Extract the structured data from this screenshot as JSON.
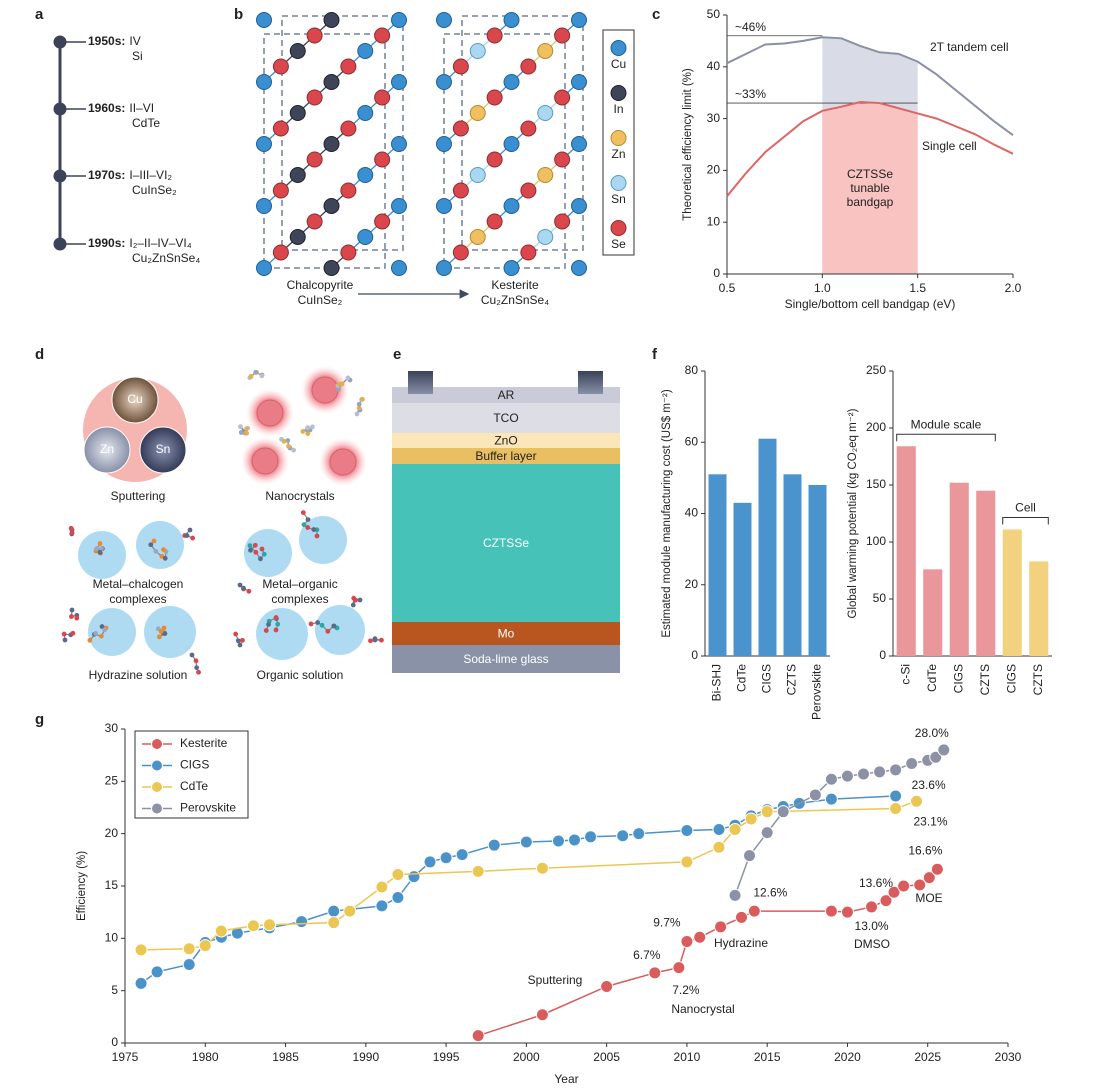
{
  "panel_labels": [
    "a",
    "b",
    "c",
    "d",
    "e",
    "f",
    "g"
  ],
  "timeline": [
    {
      "era": "1950s:",
      "class": "IV",
      "material": "Si"
    },
    {
      "era": "1960s:",
      "class": "II–VI",
      "material": "CdTe"
    },
    {
      "era": "1970s:",
      "class": "I–III–VI₂",
      "material": "CuInSe₂"
    },
    {
      "era": "1990s:",
      "class": "I₂–II–IV–VI₄",
      "material": "Cu₂ZnSnSe₄"
    }
  ],
  "crystal": {
    "structures": [
      {
        "name": "Chalcopyrite",
        "formula": "CuInSe₂"
      },
      {
        "name": "Kesterite",
        "formula": "Cu₂ZnSnSe₄"
      }
    ],
    "legend": [
      "Cu",
      "In",
      "Zn",
      "Sn",
      "Se"
    ]
  },
  "deposition": {
    "sputtering_targets": [
      "Cu",
      "Zn",
      "Sn"
    ],
    "methods": [
      [
        "Sputtering"
      ],
      [
        "Nanocrystals"
      ],
      [
        "Metal–chalcogen",
        "complexes"
      ],
      [
        "Metal–organic",
        "complexes"
      ],
      [
        "Hydrazine solution"
      ],
      [
        "Organic solution"
      ]
    ]
  },
  "device_stack": {
    "layers": [
      "AR",
      "TCO",
      "ZnO",
      "Buffer layer",
      "CZTSSe",
      "Mo",
      "Soda-lime glass"
    ]
  },
  "chart_data": [
    {
      "type": "line",
      "xlabel": "Single/bottom cell bandgap (eV)",
      "ylabel": "Theoretical efficiency limit (%)",
      "xlim": [
        0.5,
        2.0
      ],
      "ylim": [
        0,
        50
      ],
      "xticks": [
        0.5,
        {
          "value": 1,
          "label": "1.0"
        },
        1.5,
        {
          "value": 2,
          "label": "2.0"
        }
      ],
      "yticks": [
        0,
        10,
        20,
        30,
        40,
        50
      ],
      "x": [
        0.5,
        0.6,
        0.7,
        0.8,
        0.9,
        1.0,
        1.1,
        1.2,
        1.3,
        1.4,
        1.5,
        1.6,
        1.7,
        1.8,
        1.9,
        2.0
      ],
      "series": [
        {
          "name": "2T tandem cell",
          "color": "#8a90a5",
          "values": [
            40.7,
            42.5,
            44.3,
            44.5,
            45.0,
            45.7,
            45.5,
            44.0,
            42.8,
            42.5,
            41.0,
            38.5,
            35.5,
            32.5,
            29.5,
            26.8
          ]
        },
        {
          "name": "Single cell",
          "color": "#e06464",
          "values": [
            15,
            19.5,
            23.5,
            26.5,
            29.5,
            31.5,
            32.3,
            33.2,
            33.0,
            32.0,
            31.0,
            30.0,
            28.5,
            27.0,
            25.0,
            23.2
          ]
        }
      ],
      "highlight": [
        1.0,
        1.5
      ],
      "highlight_colors": [
        "#d9dce6",
        "#f8c3c0"
      ],
      "annotation": [
        "CZTSSe",
        "tunable",
        "bandgap"
      ],
      "reference_lines": [
        {
          "value": 46,
          "label": "~46%"
        },
        {
          "value": 33,
          "label": "~33%"
        }
      ]
    },
    {
      "type": "bar",
      "ylabel": "Estimated module manufacturing cost (US$ m⁻²)",
      "categories": [
        "Bi-SHJ",
        "CdTe",
        "CIGS",
        "CZTS",
        "Perovskite"
      ],
      "values": [
        51,
        43,
        61,
        51,
        48
      ],
      "color": "#4b93cc",
      "ylim": [
        0,
        80
      ],
      "yticks": [
        0,
        20,
        40,
        60,
        80
      ]
    },
    {
      "type": "bar",
      "ylabel": "Global warming potential (kg CO₂eq m⁻²)",
      "categories": [
        "c-Si",
        "CdTe",
        "CIGS",
        "CZTS",
        "CIGS",
        "CZTS"
      ],
      "series": [
        {
          "name": "Module scale",
          "color": "#e9979a",
          "values": [
            184,
            76,
            152,
            145,
            null,
            null
          ]
        },
        {
          "name": "Cell",
          "color": "#f2d27e",
          "values": [
            null,
            null,
            null,
            null,
            111,
            83
          ]
        }
      ],
      "ylim": [
        0,
        250
      ],
      "yticks": [
        0,
        50,
        100,
        150,
        200,
        250
      ]
    },
    {
      "type": "line",
      "xlabel": "Year",
      "ylabel": "Efficiency (%)",
      "legend": "upper left",
      "markers": true,
      "xlim": [
        1975,
        2030
      ],
      "ylim": [
        0,
        30
      ],
      "xticks": [
        1975,
        1980,
        1985,
        1990,
        1995,
        2000,
        2005,
        2010,
        2015,
        2020,
        2025,
        2030
      ],
      "yticks": [
        0,
        5,
        10,
        15,
        20,
        25,
        30
      ],
      "series": [
        {
          "name": "Kesterite",
          "color": "#d95b5b",
          "x": [
            1997,
            2001,
            2005,
            2008,
            2009.5,
            2010,
            2010.8,
            2012.1,
            2013.4,
            2014.2,
            2019,
            2020,
            2021.5,
            2022.4,
            2022.9,
            2023.5,
            2024.5,
            2025.1,
            2025.6
          ],
          "values": [
            0.7,
            2.7,
            5.4,
            6.7,
            7.2,
            9.7,
            10.1,
            11.1,
            12.0,
            12.6,
            12.6,
            12.5,
            13.0,
            13.6,
            14.4,
            15.0,
            15.1,
            15.8,
            16.6
          ],
          "value_labels": [
            null,
            null,
            null,
            "6.7%",
            "7.2%",
            "9.7%",
            null,
            null,
            null,
            "12.6%",
            null,
            null,
            "13.0%",
            "13.6%",
            null,
            null,
            null,
            null,
            "16.6%"
          ]
        },
        {
          "name": "CIGS",
          "color": "#4b92c9",
          "x": [
            1976,
            1977,
            1979,
            1980,
            1981,
            1982,
            1984,
            1986,
            1988,
            1991,
            1992,
            1993,
            1994,
            1995,
            1996,
            1998,
            2000,
            2002,
            2003,
            2004,
            2006,
            2007,
            2010,
            2012,
            2013,
            2014,
            2015,
            2016,
            2017,
            2019,
            2023
          ],
          "values": [
            5.7,
            6.8,
            7.5,
            9.6,
            10.1,
            10.5,
            11.0,
            11.6,
            12.6,
            13.1,
            13.9,
            15.9,
            17.3,
            17.7,
            18.0,
            18.9,
            19.2,
            19.3,
            19.4,
            19.7,
            19.8,
            20.0,
            20.3,
            20.4,
            20.8,
            21.7,
            22.3,
            22.6,
            22.9,
            23.3,
            23.6
          ],
          "value_labels": [
            null,
            null,
            null,
            null,
            null,
            null,
            null,
            null,
            null,
            null,
            null,
            null,
            null,
            null,
            null,
            null,
            null,
            null,
            null,
            null,
            null,
            null,
            null,
            null,
            null,
            null,
            null,
            null,
            null,
            null,
            "23.6%"
          ]
        },
        {
          "name": "CdTe",
          "color": "#ebc652",
          "x": [
            1976,
            1979,
            1980,
            1981,
            1983,
            1984,
            1988,
            1989,
            1991,
            1992,
            1997,
            2001,
            2010,
            2012,
            2013,
            2014,
            2015,
            2023,
            2024.3
          ],
          "values": [
            8.9,
            9.0,
            9.3,
            10.7,
            11.2,
            11.3,
            11.5,
            12.6,
            14.9,
            16.1,
            16.4,
            16.7,
            17.3,
            18.7,
            20.4,
            21.4,
            22.1,
            22.4,
            23.1
          ],
          "value_labels": [
            null,
            null,
            null,
            null,
            null,
            null,
            null,
            null,
            null,
            null,
            null,
            null,
            null,
            null,
            null,
            null,
            null,
            null,
            "23.1%"
          ]
        },
        {
          "name": "Perovskite",
          "color": "#8c91a5",
          "x": [
            2013,
            2013.9,
            2015,
            2016,
            2018,
            2019,
            2020,
            2021,
            2022,
            2023,
            2024,
            2025,
            2025.5,
            2026
          ],
          "values": [
            14.1,
            17.9,
            20.1,
            22.1,
            23.7,
            25.2,
            25.5,
            25.7,
            25.9,
            26.1,
            26.7,
            27.0,
            27.3,
            28.0
          ],
          "value_labels": [
            null,
            null,
            null,
            null,
            null,
            null,
            null,
            null,
            null,
            null,
            null,
            null,
            null,
            "28.0%"
          ]
        }
      ],
      "annotations": [
        "Sputtering",
        "Nanocrystal",
        "Hydrazine",
        "DMSO",
        "MOE"
      ]
    }
  ]
}
